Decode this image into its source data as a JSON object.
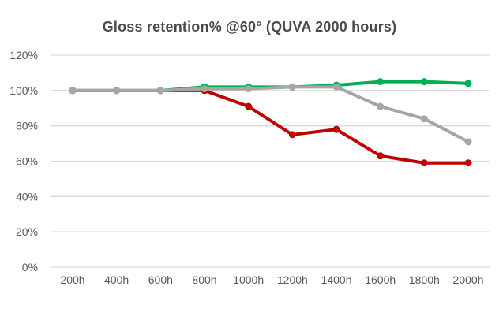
{
  "chart_data": {
    "type": "line",
    "title": "Gloss retention% @60° (QUVA 2000 hours)",
    "categories": [
      "200h",
      "400h",
      "600h",
      "800h",
      "1000h",
      "1200h",
      "1400h",
      "1600h",
      "1800h",
      "2000h"
    ],
    "series": [
      {
        "name": "red-series",
        "color": "#c00000",
        "values": [
          100,
          100,
          100,
          100,
          91,
          75,
          78,
          63,
          59,
          59
        ]
      },
      {
        "name": "green-series",
        "color": "#00b050",
        "values": [
          100,
          100,
          100,
          102,
          102,
          102,
          103,
          105,
          105,
          104
        ]
      },
      {
        "name": "gray-series",
        "color": "#a6a6a6",
        "values": [
          100,
          100,
          100,
          101,
          101,
          102,
          102,
          91,
          84,
          71
        ]
      }
    ],
    "xlabel": "",
    "ylabel": "",
    "ylim": [
      0,
      120
    ],
    "ytick_step": 20,
    "ytick_labels": [
      "0%",
      "20%",
      "40%",
      "60%",
      "80%",
      "100%",
      "120%"
    ],
    "grid": "horizontal",
    "legend": "none",
    "gridline_color": "#d9d9d9",
    "axis_label_color": "#595959",
    "background_color": "#ffffff",
    "title_color": "#4a4a4a"
  }
}
